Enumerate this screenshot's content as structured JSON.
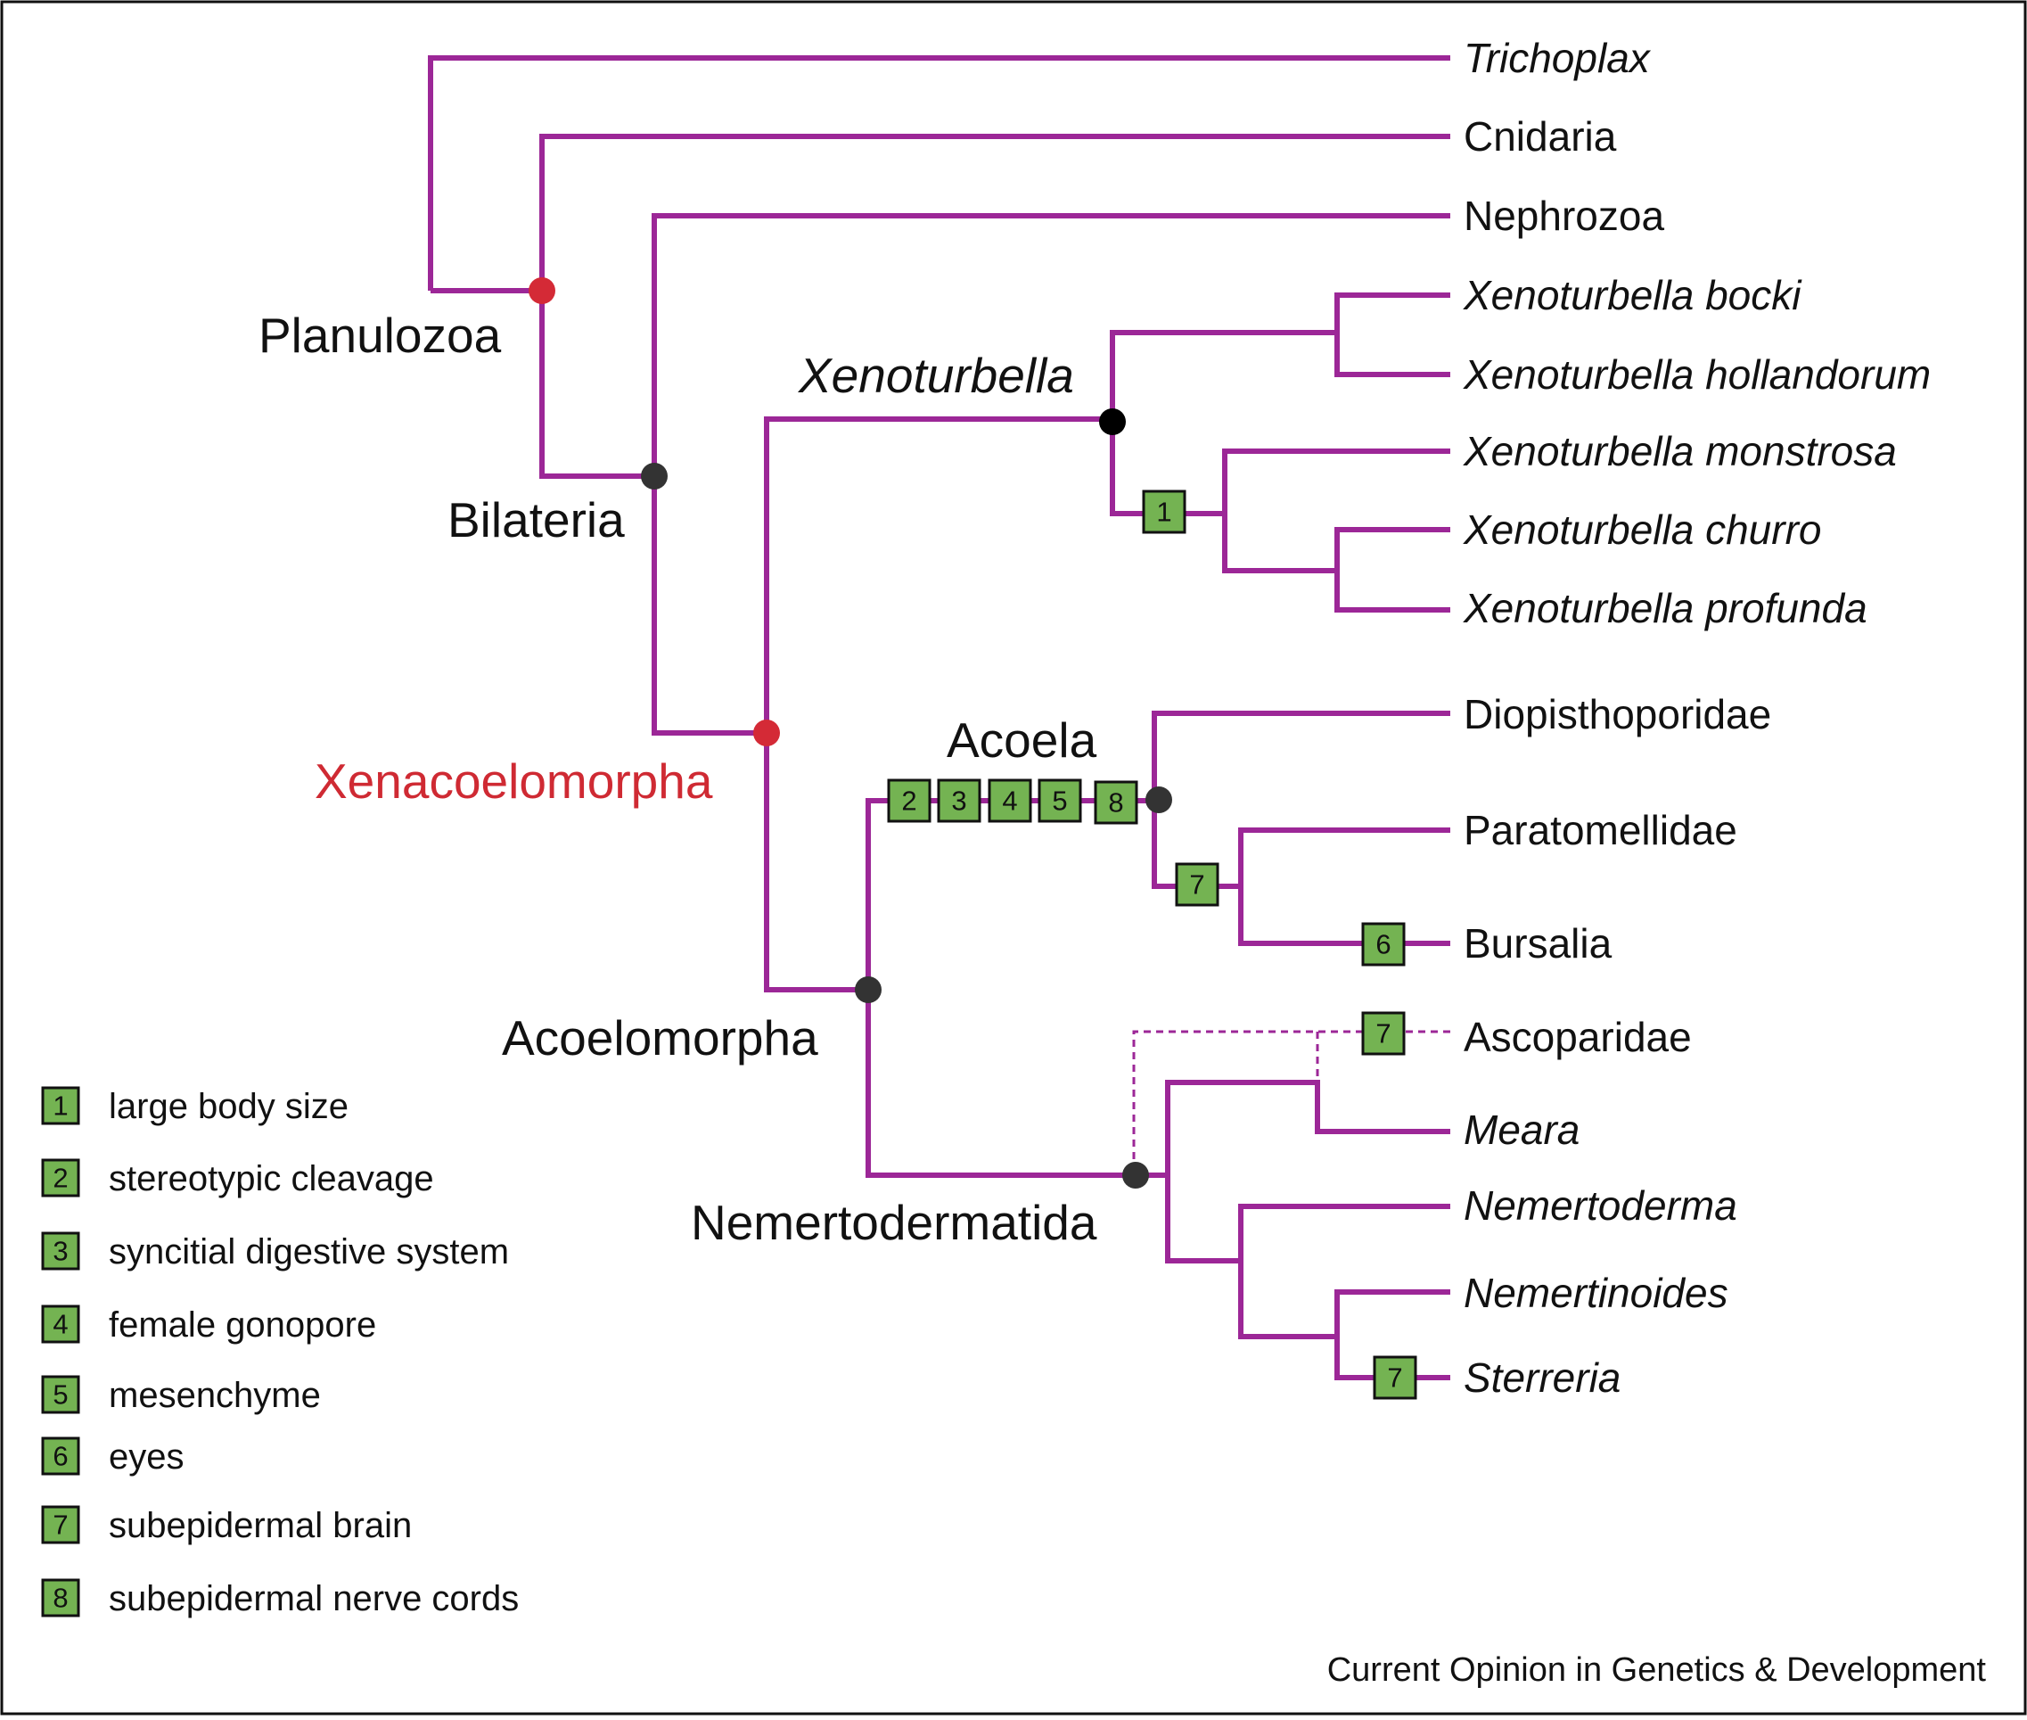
{
  "colors": {
    "branch": "#9c2797",
    "node_dark": "#333333",
    "node_black": "#000000",
    "node_red": "#d42a36",
    "clade_red_text": "#cf2a33",
    "box_fill": "#74b352",
    "box_stroke": "#111111"
  },
  "taxa": {
    "trichoplax": "Trichoplax",
    "cnidaria": "Cnidaria",
    "nephrozoa": "Nephrozoa",
    "xeno_bocki": "Xenoturbella bocki",
    "xeno_hollandorum": "Xenoturbella hollandorum",
    "xeno_monstrosa": "Xenoturbella monstrosa",
    "xeno_churro": "Xenoturbella churro",
    "xeno_profunda": "Xenoturbella profunda",
    "diopisthoporidae": "Diopisthoporidae",
    "paratomellidae": "Paratomellidae",
    "bursalia": "Bursalia",
    "ascoparidae": "Ascoparidae",
    "meara": "Meara",
    "nemertoderma": "Nemertoderma",
    "nemertinoides": "Nemertinoides",
    "sterreria": "Sterreria"
  },
  "clades": {
    "planulozoa": "Planulozoa",
    "bilateria": "Bilateria",
    "xenoturbella": "Xenoturbella",
    "xenacoelomorpha": "Xenacoelomorpha",
    "acoela": "Acoela",
    "acoelomorpha": "Acoelomorpha",
    "nemertodermatida": "Nemertodermatida"
  },
  "markers": {
    "m1": "1",
    "m2": "2",
    "m3": "3",
    "m4": "4",
    "m5": "5",
    "m6": "6",
    "m7": "7",
    "m8": "8"
  },
  "legend": [
    {
      "num": "1",
      "label": "large body size"
    },
    {
      "num": "2",
      "label": "stereotypic cleavage"
    },
    {
      "num": "3",
      "label": "syncitial digestive system"
    },
    {
      "num": "4",
      "label": "female gonopore"
    },
    {
      "num": "5",
      "label": "mesenchyme"
    },
    {
      "num": "6",
      "label": "eyes"
    },
    {
      "num": "7",
      "label": "subepidermal brain"
    },
    {
      "num": "8",
      "label": "subepidermal nerve cords"
    }
  ],
  "credit": "Current Opinion in Genetics & Development"
}
